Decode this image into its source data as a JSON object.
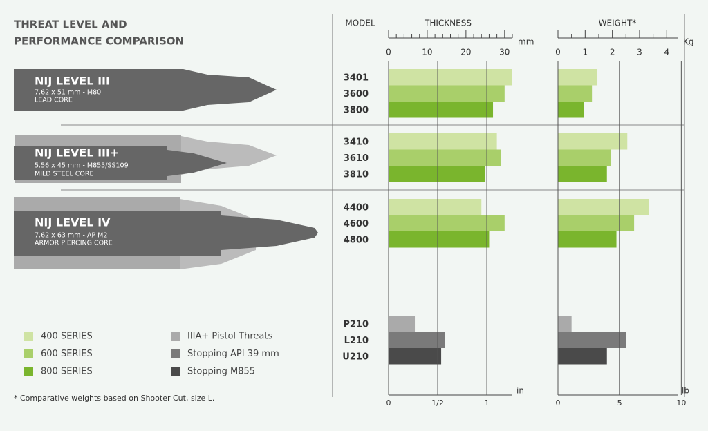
{
  "title": [
    "THREAT LEVEL AND",
    "PERFORMANCE COMPARISON"
  ],
  "levels": [
    {
      "name": "NIJ LEVEL III",
      "caliber": "7.62 x 51 mm - M80",
      "core": "LEAD CORE"
    },
    {
      "name": "NIJ LEVEL III+",
      "caliber": "5.56 x 45 mm - M855/SS109",
      "core": "MILD STEEL CORE"
    },
    {
      "name": "NIJ LEVEL IV",
      "caliber": "7.62 x 63 mm - AP M2",
      "core": "ARMOR PIERCING CORE"
    }
  ],
  "legend": [
    {
      "name": "400 SERIES",
      "color": "#cfe3a3"
    },
    {
      "name": "600 SERIES",
      "color": "#a9cf6a"
    },
    {
      "name": "800 SERIES",
      "color": "#7ab52d"
    },
    {
      "name": "IIIA+ Pistol Threats",
      "color": "#aaaaaa"
    },
    {
      "name": "Stopping API 39 mm",
      "color": "#7a7a7a"
    },
    {
      "name": "Stopping M855",
      "color": "#4a4a4a"
    }
  ],
  "footnote": "* Comparative weights based on Shooter Cut, size L.",
  "chart_data": [
    {
      "type": "bar",
      "title": "THICKNESS",
      "category_header": "MODEL",
      "categories": [
        "3401",
        "3600",
        "3800",
        "3410",
        "3610",
        "3810",
        "4400",
        "4600",
        "4800",
        "P210",
        "L210",
        "U210"
      ],
      "values": [
        32,
        30,
        27,
        28,
        29,
        25,
        24,
        30,
        26,
        6.8,
        14.6,
        13.6
      ],
      "colors": [
        "#cfe3a3",
        "#a9cf6a",
        "#7ab52d",
        "#cfe3a3",
        "#a9cf6a",
        "#7ab52d",
        "#cfe3a3",
        "#a9cf6a",
        "#7ab52d",
        "#aaaaaa",
        "#7a7a7a",
        "#4a4a4a"
      ],
      "xunit": "mm",
      "xlim": [
        0,
        32
      ],
      "xticks": [
        0,
        10,
        20,
        30
      ],
      "xminorticks": [
        2,
        4,
        6,
        8,
        12,
        14,
        16,
        18,
        22,
        24,
        26,
        28,
        32
      ],
      "x2unit": "in",
      "x2lim": [
        0,
        1.26
      ],
      "x2ticks": [
        0,
        {
          "value": 0.5,
          "label": "1/2"
        },
        1
      ]
    },
    {
      "type": "bar",
      "title": "WEIGHT*",
      "values": [
        1.45,
        1.25,
        0.95,
        2.55,
        1.95,
        1.8,
        3.35,
        2.8,
        2.15,
        0.5,
        2.5,
        1.8
      ],
      "colors": [
        "#cfe3a3",
        "#a9cf6a",
        "#7ab52d",
        "#cfe3a3",
        "#a9cf6a",
        "#7ab52d",
        "#cfe3a3",
        "#a9cf6a",
        "#7ab52d",
        "#aaaaaa",
        "#7a7a7a",
        "#4a4a4a"
      ],
      "xunit": "Kg",
      "xlim": [
        0,
        4.4
      ],
      "xticks": [
        0,
        1,
        2,
        3,
        4
      ],
      "xminorticks": [
        0.5,
        1.5,
        2.5,
        3.5
      ],
      "x2unit": "lb",
      "x2lim": [
        0,
        9.7
      ],
      "x2ticks": [
        0,
        5,
        10
      ]
    }
  ]
}
